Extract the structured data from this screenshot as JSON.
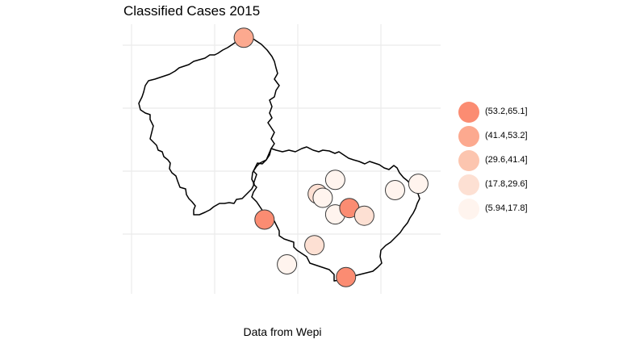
{
  "title": "Classified Cases 2015",
  "caption": "Data from Wepi",
  "colors": {
    "background": "#ffffff",
    "grid": "#ebebeb",
    "outline": "#000000",
    "point_stroke": "#3a3a3a"
  },
  "legend": {
    "items": [
      {
        "label": "(53.2,65.1]",
        "color": "#fb8c72"
      },
      {
        "label": "(41.4,53.2]",
        "color": "#fca98f"
      },
      {
        "label": "(29.6,41.4]",
        "color": "#fcc5af"
      },
      {
        "label": "(17.8,29.6]",
        "color": "#fde0d3"
      },
      {
        "label": "(5.94,17.8]",
        "color": "#fff4ee"
      }
    ]
  },
  "map": {
    "regions": [
      "north",
      "south"
    ],
    "points": [
      {
        "lon": 1.35,
        "lat": 50.55,
        "class": 1
      },
      {
        "lon": 1.6,
        "lat": 49.13,
        "class": 0
      },
      {
        "lon": 2.45,
        "lat": 49.44,
        "class": 4
      },
      {
        "lon": 2.24,
        "lat": 49.33,
        "class": 3
      },
      {
        "lon": 2.3,
        "lat": 49.3,
        "class": 4
      },
      {
        "lon": 2.45,
        "lat": 49.17,
        "class": 4
      },
      {
        "lon": 2.62,
        "lat": 49.22,
        "class": 0
      },
      {
        "lon": 2.8,
        "lat": 49.16,
        "class": 3
      },
      {
        "lon": 3.17,
        "lat": 49.36,
        "class": 4
      },
      {
        "lon": 3.45,
        "lat": 49.41,
        "class": 4
      },
      {
        "lon": 2.2,
        "lat": 48.93,
        "class": 3
      },
      {
        "lon": 1.87,
        "lat": 48.78,
        "class": 4
      },
      {
        "lon": 2.58,
        "lat": 48.68,
        "class": 0
      }
    ]
  }
}
